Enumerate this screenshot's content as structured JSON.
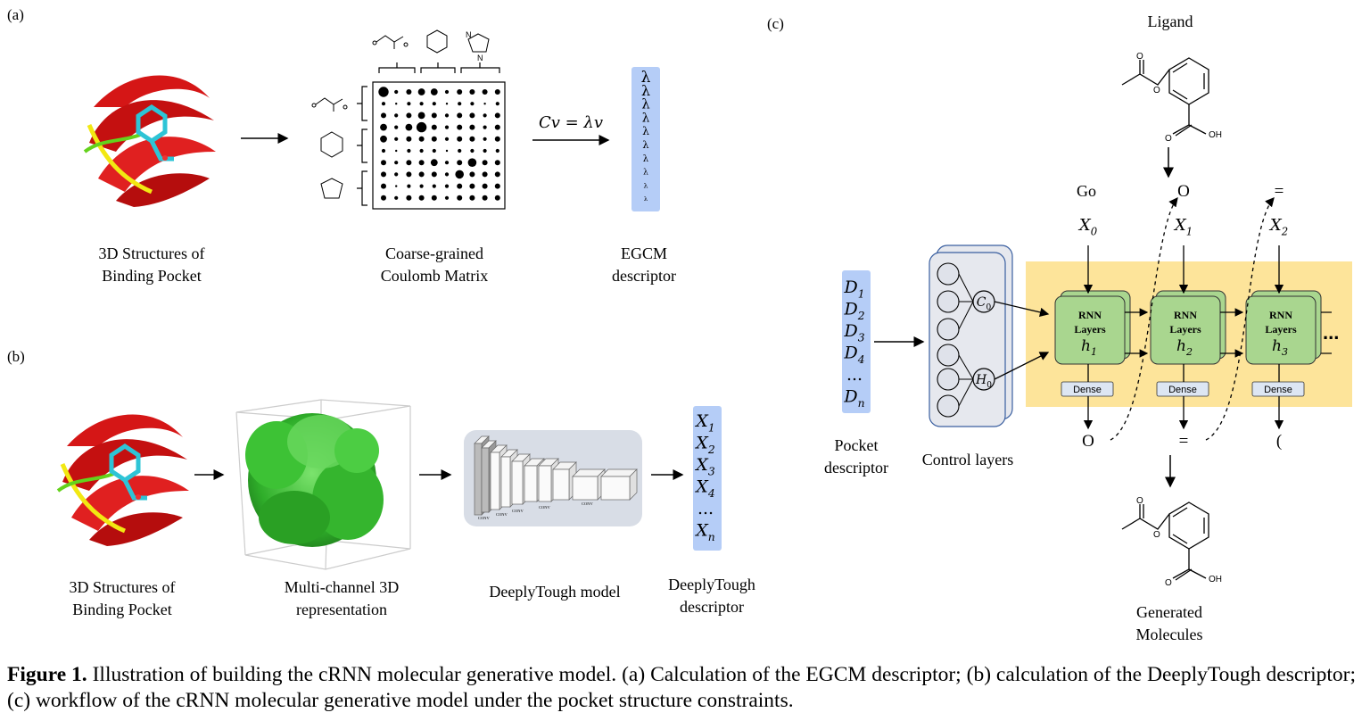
{
  "panel_a": {
    "label": "(a)",
    "structure_caption_1": "3D Structures of",
    "structure_caption_2": "Binding Pocket",
    "matrix_caption_1": "Coarse-grained",
    "matrix_caption_2": "Coulomb Matrix",
    "equation": "Cv = λv",
    "lambda_symbol": "λ",
    "egcm_caption_1": "EGCM",
    "egcm_caption_2": "descriptor",
    "ring_label_n": "N"
  },
  "panel_b": {
    "label": "(b)",
    "structure_caption_1": "3D Structures of",
    "structure_caption_2": "Binding Pocket",
    "rep_caption_1": "Multi-channel 3D",
    "rep_caption_2": "representation",
    "model_caption": "DeeplyTough model",
    "conv_label": "CONV",
    "desc_caption_1": "DeeplyTough",
    "desc_caption_2": "descriptor",
    "vector": [
      "X1",
      "X2",
      "X3",
      "X4",
      "...",
      "Xn"
    ]
  },
  "panel_c": {
    "label": "(c)",
    "ligand_label": "Ligand",
    "oh_label": "OH",
    "pocket_vector": [
      "D1",
      "D2",
      "D3",
      "D4",
      "...",
      "Dn"
    ],
    "pocket_caption_1": "Pocket",
    "pocket_caption_2": "descriptor",
    "control_caption": "Control layers",
    "c0": "C0",
    "h0": "H0",
    "go": "Go",
    "inputs": [
      "X0",
      "X1",
      "X2"
    ],
    "top_tokens": [
      "O",
      "="
    ],
    "rnn_line1": "RNN",
    "rnn_line2": "Layers",
    "hidden": [
      "h1",
      "h2",
      "h3"
    ],
    "dense": "Dense",
    "outputs": [
      "O",
      "=",
      "("
    ],
    "ellipsis": "...",
    "generated_1": "Generated",
    "generated_2": "Molecules"
  },
  "caption": {
    "figure_label": "Figure 1.",
    "text": " Illustration of building the cRNN molecular generative model. (a) Calculation of the EGCM descriptor; (b) calculation of the DeeplyTough descriptor; (c) workflow of the cRNN molecular generative model under the pocket structure constraints."
  }
}
